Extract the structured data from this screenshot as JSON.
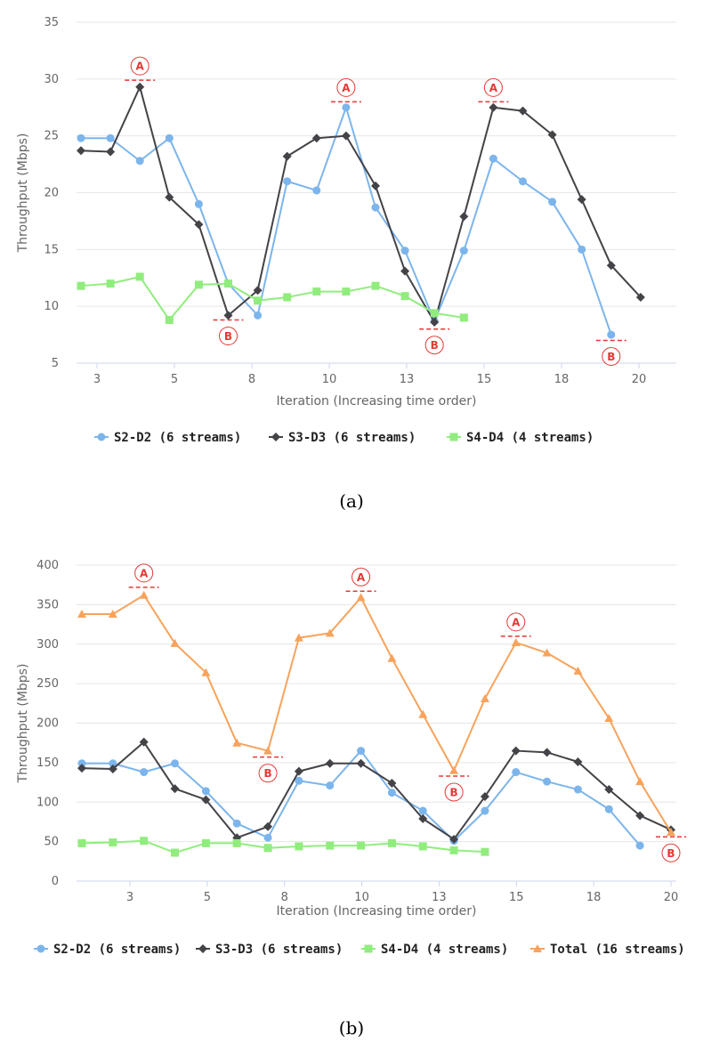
{
  "colors": {
    "s2": "#7cb5ec",
    "s3": "#434348",
    "s4": "#90ed7d",
    "total": "#f7a35c",
    "annotation": "#e53935",
    "grid": "#e6e6e6"
  },
  "chart_data": [
    {
      "type": "line",
      "caption": "(a)",
      "xlabel": "Iteration (Increasing time order)",
      "ylabel": "Throughput (Mbps)",
      "ylim": [
        5,
        35
      ],
      "yticks": [
        5,
        10,
        15,
        20,
        25,
        30,
        35
      ],
      "xlim": [
        1,
        21.6
      ],
      "xtick_labels": [
        {
          "x": 2.5,
          "label": "3"
        },
        {
          "x": 5,
          "label": "5"
        },
        {
          "x": 7.5,
          "label": "8"
        },
        {
          "x": 10,
          "label": "10"
        },
        {
          "x": 12.5,
          "label": "13"
        },
        {
          "x": 15,
          "label": "15"
        },
        {
          "x": 17.5,
          "label": "18"
        },
        {
          "x": 20,
          "label": "20"
        }
      ],
      "legend_position": "bottom",
      "grid": true,
      "series": [
        {
          "name": "S2-D2 (6 streams)",
          "color_key": "s2",
          "marker": "circle",
          "x": [
            1,
            2,
            3,
            4,
            5,
            6,
            7,
            8,
            9,
            10,
            11,
            12,
            13,
            14,
            15,
            16,
            17,
            18,
            19
          ],
          "y": [
            24.8,
            24.8,
            22.8,
            24.8,
            19,
            12,
            9.2,
            21,
            20.2,
            27.5,
            18.7,
            14.9,
            8.7,
            14.9,
            23,
            21,
            19.2,
            15,
            7.5
          ]
        },
        {
          "name": "S3-D3 (6 streams)",
          "color_key": "s3",
          "marker": "diamond",
          "x": [
            1,
            2,
            3,
            4,
            5,
            6,
            7,
            8,
            9,
            10,
            11,
            12,
            13,
            14,
            15,
            16,
            17,
            18,
            19,
            20
          ],
          "y": [
            23.7,
            23.6,
            29.3,
            19.6,
            17.2,
            9.2,
            11.4,
            23.2,
            24.8,
            25,
            20.6,
            13.1,
            8.6,
            17.9,
            27.5,
            27.2,
            25.1,
            19.4,
            13.6,
            10.8
          ]
        },
        {
          "name": "S4-D4 (4 streams)",
          "color_key": "s4",
          "marker": "square",
          "x": [
            1,
            2,
            3,
            4,
            5,
            6,
            7,
            8,
            9,
            10,
            11,
            12,
            13,
            14
          ],
          "y": [
            11.8,
            12,
            12.6,
            8.8,
            11.9,
            12,
            10.5,
            10.8,
            11.3,
            11.3,
            11.8,
            10.9,
            9.4,
            9
          ]
        }
      ],
      "annotations": [
        {
          "label": "A",
          "kind": "peak",
          "x": 3,
          "y": 29.9
        },
        {
          "label": "A",
          "kind": "peak",
          "x": 10,
          "y": 28
        },
        {
          "label": "A",
          "kind": "peak",
          "x": 15,
          "y": 28
        },
        {
          "label": "B",
          "kind": "trough",
          "x": 6,
          "y": 8.8
        },
        {
          "label": "B",
          "kind": "trough",
          "x": 13,
          "y": 8
        },
        {
          "label": "B",
          "kind": "trough",
          "x": 19,
          "y": 7
        }
      ]
    },
    {
      "type": "line",
      "caption": "(b)",
      "xlabel": "Iteration (Increasing time order)",
      "ylabel": "Throughput (Mbps)",
      "ylim": [
        0,
        400
      ],
      "yticks": [
        0,
        50,
        100,
        150,
        200,
        250,
        300,
        350,
        400
      ],
      "xlim": [
        0,
        19
      ],
      "xtick_labels": [
        {
          "x": 2.5,
          "label": "3"
        },
        {
          "x": 5,
          "label": "5"
        },
        {
          "x": 7.5,
          "label": "8"
        },
        {
          "x": 10,
          "label": "10"
        },
        {
          "x": 12.5,
          "label": "13"
        },
        {
          "x": 15,
          "label": "15"
        },
        {
          "x": 17.5,
          "label": "18"
        },
        {
          "x": 20,
          "label": "20"
        }
      ],
      "legend_position": "bottom",
      "grid": true,
      "series": [
        {
          "name": "S2-D2 (6 streams)",
          "color_key": "s2",
          "marker": "circle",
          "x": [
            1,
            2,
            3,
            4,
            5,
            6,
            7,
            8,
            9,
            10,
            11,
            12,
            13,
            14,
            15,
            16,
            17,
            18,
            19
          ],
          "y": [
            149,
            149,
            138,
            149,
            114,
            73,
            55,
            127,
            121,
            165,
            112,
            89,
            51,
            89,
            138,
            126,
            116,
            91,
            45
          ]
        },
        {
          "name": "S3-D3 (6 streams)",
          "color_key": "s3",
          "marker": "diamond",
          "x": [
            1,
            2,
            3,
            4,
            5,
            6,
            7,
            8,
            9,
            10,
            11,
            12,
            13,
            14,
            15,
            16,
            17,
            18,
            19,
            20
          ],
          "y": [
            143,
            142,
            176,
            117,
            103,
            55,
            69,
            139,
            149,
            149,
            124,
            79,
            53,
            107,
            165,
            163,
            151,
            116,
            83,
            65
          ]
        },
        {
          "name": "S4-D4 (4 streams)",
          "color_key": "s4",
          "marker": "square",
          "x": [
            1,
            2,
            3,
            4,
            5,
            6,
            7,
            8,
            9,
            10,
            11,
            12,
            13,
            14
          ],
          "y": [
            48,
            49,
            51,
            36,
            48,
            48,
            42,
            44,
            45,
            45,
            48,
            44,
            39,
            37
          ]
        },
        {
          "name": "Total (16 streams)",
          "color_key": "total",
          "marker": "triangle",
          "x": [
            1,
            2,
            3,
            4,
            5,
            6,
            7,
            8,
            9,
            10,
            11,
            12,
            13,
            14,
            15,
            16,
            17,
            18,
            19,
            20
          ],
          "y": [
            338,
            338,
            362,
            301,
            264,
            175,
            165,
            308,
            314,
            359,
            282,
            211,
            140,
            231,
            302,
            289,
            266,
            206,
            126,
            62
          ]
        }
      ],
      "annotations": [
        {
          "label": "A",
          "kind": "peak",
          "x": 3,
          "y": 372
        },
        {
          "label": "A",
          "kind": "peak",
          "x": 10,
          "y": 367
        },
        {
          "label": "A",
          "kind": "peak",
          "x": 15,
          "y": 310
        },
        {
          "label": "B",
          "kind": "trough",
          "x": 7,
          "y": 157
        },
        {
          "label": "B",
          "kind": "trough",
          "x": 13,
          "y": 133
        },
        {
          "label": "B",
          "kind": "trough",
          "x": 20,
          "y": 56
        }
      ]
    }
  ]
}
